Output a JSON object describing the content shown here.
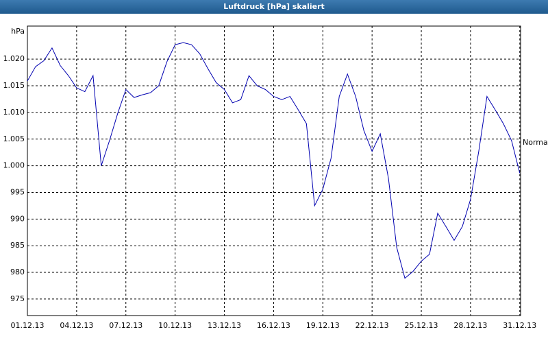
{
  "chart_data": {
    "type": "line",
    "title": "Luftdruck [hPa] skaliert",
    "y_unit": "hPa",
    "annotation": "Normal",
    "x": [
      0,
      0.5,
      1,
      1.5,
      2,
      2.5,
      3,
      3.5,
      4,
      4.5,
      5,
      5.5,
      6,
      6.5,
      7,
      7.5,
      8,
      8.5,
      9,
      9.5,
      10,
      10.5,
      11,
      11.5,
      12,
      12.5,
      13,
      13.5,
      14,
      14.5,
      15,
      15.5,
      16,
      16.5,
      17,
      17.5,
      18,
      18.5,
      19,
      19.5,
      20,
      20.5,
      21,
      21.5,
      22,
      22.5,
      23,
      23.5,
      24,
      24.5,
      25,
      25.5,
      26,
      26.5,
      27,
      27.5,
      28,
      28.5,
      29,
      29.5,
      30
    ],
    "series": [
      {
        "color": "#0000b0",
        "values": [
          1015.9,
          1018.6,
          1019.7,
          1022.1,
          1018.8,
          1016.9,
          1014.6,
          1013.9,
          1016.9,
          1000,
          1004.7,
          1009.8,
          1014.3,
          1012.8,
          1013.3,
          1013.7,
          1015,
          1019.5,
          1022.7,
          1023.1,
          1022.7,
          1021,
          1018.2,
          1015.6,
          1014.3,
          1011.8,
          1012.4,
          1016.9,
          1015,
          1014.3,
          1013,
          1012.4,
          1013,
          1010.5,
          1007.9,
          992.5,
          995.6,
          1001.4,
          1013,
          1017.2,
          1013,
          1006.6,
          1002.7,
          1006,
          997.6,
          984.7,
          978.9,
          980.2,
          982.1,
          983.4,
          991.1,
          988.6,
          986,
          988.6,
          993.7,
          1002.7,
          1013,
          1010.5,
          1007.9,
          1004.7,
          998.6
        ]
      }
    ],
    "xlim": [
      0,
      30.05
    ],
    "xticks": [
      {
        "value": 0,
        "label": "01.12.13"
      },
      {
        "value": 3,
        "label": "04.12.13"
      },
      {
        "value": 6,
        "label": "07.12.13"
      },
      {
        "value": 9,
        "label": "10.12.13"
      },
      {
        "value": 12,
        "label": "13.12.13"
      },
      {
        "value": 15,
        "label": "16.12.13"
      },
      {
        "value": 18,
        "label": "19.12.13"
      },
      {
        "value": 21,
        "label": "22.12.13"
      },
      {
        "value": 24,
        "label": "25.12.13"
      },
      {
        "value": 27,
        "label": "28.12.13"
      },
      {
        "value": 30,
        "label": "31.12.13"
      }
    ],
    "ylim": [
      971.9,
      1026.2
    ],
    "yticks": [
      975,
      980,
      985,
      990,
      995,
      {
        "value": 1000,
        "label": "1.000"
      },
      {
        "value": 1005,
        "label": "1.005"
      },
      {
        "value": 1010,
        "label": "1.010"
      },
      {
        "value": 1015,
        "label": "1.015"
      },
      {
        "value": 1020,
        "label": "1.020"
      }
    ],
    "grid": true
  }
}
